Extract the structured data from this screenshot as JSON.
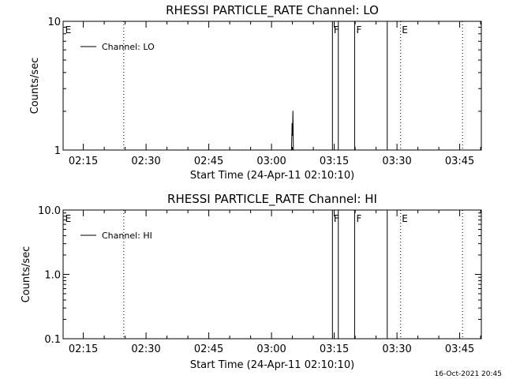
{
  "footer": {
    "timestamp": "16-Oct-2021 20:45"
  },
  "chart_data": [
    {
      "type": "line",
      "title": "RHESSI PARTICLE_RATE Channel: LO",
      "xlabel": "Start Time (24-Apr-11 02:10:10)",
      "ylabel": "Counts/sec",
      "y_scale": "log",
      "ylim": [
        1,
        10
      ],
      "y_ticks": [
        {
          "value": 1,
          "label": "1"
        },
        {
          "value": 10,
          "label": "10"
        }
      ],
      "x_range_minutes": [
        0,
        100
      ],
      "x_ticks": [
        {
          "minutes": 4.83,
          "label": "02:15"
        },
        {
          "minutes": 19.83,
          "label": "02:30"
        },
        {
          "minutes": 34.83,
          "label": "02:45"
        },
        {
          "minutes": 49.83,
          "label": "03:00"
        },
        {
          "minutes": 64.83,
          "label": "03:15"
        },
        {
          "minutes": 79.83,
          "label": "03:30"
        },
        {
          "minutes": 94.83,
          "label": "03:45"
        }
      ],
      "legend": {
        "position": "top-left",
        "entries": [
          "Channel: LO"
        ]
      },
      "series": [
        {
          "name": "Channel: LO",
          "points": [
            {
              "minutes": 54.6,
              "value": 1.0
            },
            {
              "minutes": 54.75,
              "value": 1.6
            },
            {
              "minutes": 54.85,
              "value": 1.3
            },
            {
              "minutes": 54.95,
              "value": 2.0
            },
            {
              "minutes": 55.05,
              "value": 1.0
            }
          ]
        }
      ],
      "solid_markers_minutes": [
        64.4,
        65.8,
        69.7,
        77.5
      ],
      "dotted_markers_minutes": [
        14.5,
        80.7,
        95.5
      ],
      "flags": [
        {
          "label": "E",
          "minutes": 0.3
        },
        {
          "label": "F",
          "minutes": 64.5
        },
        {
          "label": "F",
          "minutes": 69.9
        },
        {
          "label": "E",
          "minutes": 80.8
        }
      ]
    },
    {
      "type": "line",
      "title": "RHESSI PARTICLE_RATE Channel: HI",
      "xlabel": "Start Time (24-Apr-11 02:10:10)",
      "ylabel": "Counts/sec",
      "y_scale": "log",
      "ylim": [
        0.1,
        10
      ],
      "y_ticks": [
        {
          "value": 0.1,
          "label": "0.1"
        },
        {
          "value": 1,
          "label": "1.0"
        },
        {
          "value": 10,
          "label": "10.0"
        }
      ],
      "x_range_minutes": [
        0,
        100
      ],
      "x_ticks": [
        {
          "minutes": 4.83,
          "label": "02:15"
        },
        {
          "minutes": 19.83,
          "label": "02:30"
        },
        {
          "minutes": 34.83,
          "label": "02:45"
        },
        {
          "minutes": 49.83,
          "label": "03:00"
        },
        {
          "minutes": 64.83,
          "label": "03:15"
        },
        {
          "minutes": 79.83,
          "label": "03:30"
        },
        {
          "minutes": 94.83,
          "label": "03:45"
        }
      ],
      "legend": {
        "position": "top-left",
        "entries": [
          "Channel: HI"
        ]
      },
      "series": [
        {
          "name": "Channel: HI",
          "points": []
        }
      ],
      "solid_markers_minutes": [
        64.4,
        65.8,
        69.7,
        77.5
      ],
      "dotted_markers_minutes": [
        14.5,
        80.7,
        95.5
      ],
      "flags": [
        {
          "label": "E",
          "minutes": 0.3
        },
        {
          "label": "F",
          "minutes": 64.5
        },
        {
          "label": "F",
          "minutes": 69.9
        },
        {
          "label": "E",
          "minutes": 80.8
        }
      ]
    }
  ]
}
